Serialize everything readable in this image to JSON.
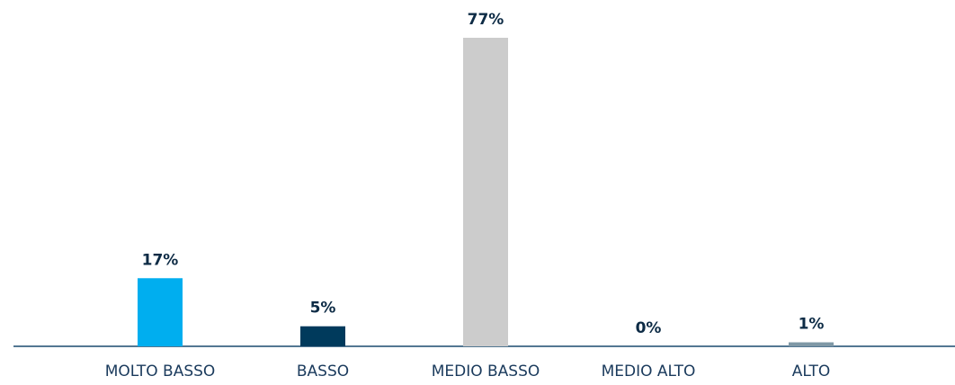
{
  "chart_data": {
    "type": "bar",
    "categories": [
      "MOLTO BASSO",
      "BASSO",
      "MEDIO BASSO",
      "MEDIO ALTO",
      "ALTO"
    ],
    "values": [
      17,
      5,
      77,
      0,
      1
    ],
    "value_labels": [
      "17%",
      "5%",
      "77%",
      "0%",
      "1%"
    ],
    "colors": [
      "#00aeef",
      "#003a5c",
      "#cccccc",
      "#3fa9d6",
      "#7f98a6"
    ]
  }
}
